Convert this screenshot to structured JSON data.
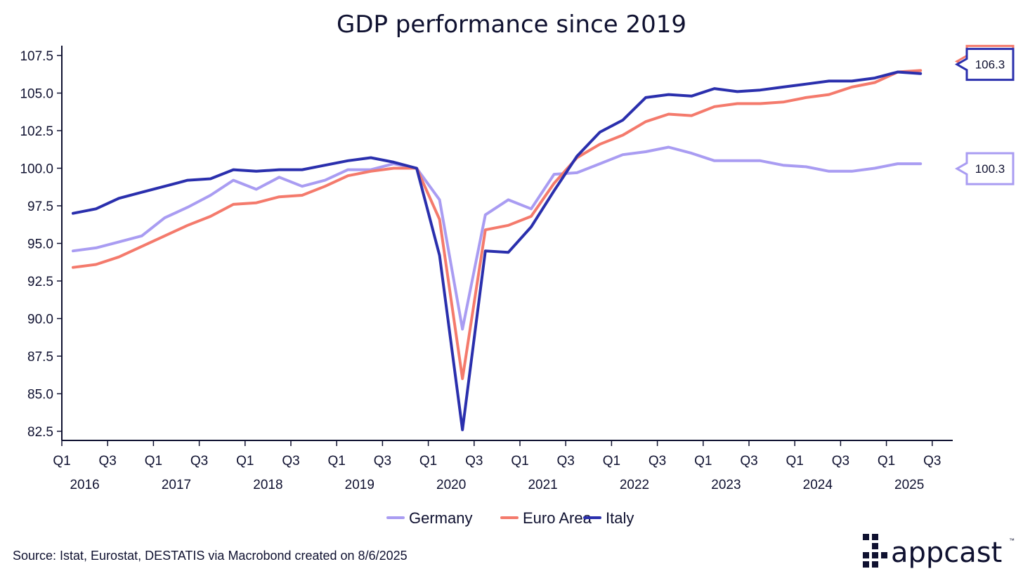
{
  "chart_data": {
    "type": "line",
    "title": "GDP performance since 2019",
    "xlabel": "",
    "ylabel": "",
    "ylim": [
      82.5,
      107.5
    ],
    "y_ticks": [
      "82.5",
      "85.0",
      "87.5",
      "90.0",
      "92.5",
      "95.0",
      "97.5",
      "100.0",
      "102.5",
      "105.0",
      "107.5"
    ],
    "x_quarter_ticks": [
      "Q1",
      "Q3",
      "Q1",
      "Q3",
      "Q1",
      "Q3",
      "Q1",
      "Q3",
      "Q1",
      "Q3",
      "Q1",
      "Q3",
      "Q1",
      "Q3",
      "Q1",
      "Q3",
      "Q1",
      "Q3",
      "Q1",
      "Q3"
    ],
    "x_year_labels": [
      "2016",
      "2017",
      "2018",
      "2019",
      "2020",
      "2021",
      "2022",
      "2023",
      "2024",
      "2025"
    ],
    "x": [
      "2016 Q1",
      "2016 Q2",
      "2016 Q3",
      "2016 Q4",
      "2017 Q1",
      "2017 Q2",
      "2017 Q3",
      "2017 Q4",
      "2018 Q1",
      "2018 Q2",
      "2018 Q3",
      "2018 Q4",
      "2019 Q1",
      "2019 Q2",
      "2019 Q3",
      "2019 Q4",
      "2020 Q1",
      "2020 Q2",
      "2020 Q3",
      "2020 Q4",
      "2021 Q1",
      "2021 Q2",
      "2021 Q3",
      "2021 Q4",
      "2022 Q1",
      "2022 Q2",
      "2022 Q3",
      "2022 Q4",
      "2023 Q1",
      "2023 Q2",
      "2023 Q3",
      "2023 Q4",
      "2024 Q1",
      "2024 Q2",
      "2024 Q3",
      "2024 Q4",
      "2025 Q1",
      "2025 Q2"
    ],
    "series": [
      {
        "name": "Germany",
        "color": "#a99cf2",
        "values": [
          94.5,
          94.7,
          95.1,
          95.5,
          96.7,
          97.4,
          98.2,
          99.2,
          98.6,
          99.4,
          98.8,
          99.2,
          99.9,
          99.9,
          100.3,
          100.0,
          97.9,
          89.3,
          96.9,
          97.9,
          97.3,
          99.6,
          99.7,
          100.3,
          100.9,
          101.1,
          101.4,
          101.0,
          100.5,
          100.5,
          100.5,
          100.2,
          100.1,
          99.8,
          99.8,
          100.0,
          100.3,
          100.3
        ]
      },
      {
        "name": "Euro Area",
        "color": "#f47a6c",
        "values": [
          93.4,
          93.6,
          94.1,
          94.8,
          95.5,
          96.2,
          96.8,
          97.6,
          97.7,
          98.1,
          98.2,
          98.8,
          99.5,
          99.8,
          100.0,
          100.0,
          96.6,
          86.0,
          95.9,
          96.2,
          96.8,
          99.0,
          100.7,
          101.6,
          102.2,
          103.1,
          103.6,
          103.5,
          104.1,
          104.3,
          104.3,
          104.4,
          104.7,
          104.9,
          105.4,
          105.7,
          106.4,
          106.5
        ]
      },
      {
        "name": "Italy",
        "color": "#2a2fad",
        "values": [
          97.0,
          97.3,
          98.0,
          98.4,
          98.8,
          99.2,
          99.3,
          99.9,
          99.8,
          99.9,
          99.9,
          100.2,
          100.5,
          100.7,
          100.4,
          100.0,
          94.2,
          82.6,
          94.5,
          94.4,
          96.1,
          98.5,
          100.8,
          102.4,
          103.2,
          104.7,
          104.9,
          104.8,
          105.3,
          105.1,
          105.2,
          105.4,
          105.6,
          105.8,
          105.8,
          106.0,
          106.4,
          106.3
        ]
      }
    ],
    "end_labels": [
      {
        "series": "Euro Area",
        "text": "106.5",
        "color": "#f47a6c"
      },
      {
        "series": "Italy",
        "text": "106.3",
        "color": "#2a2fad"
      },
      {
        "series": "Germany",
        "text": "100.3",
        "color": "#a99cf2"
      }
    ],
    "legend": {
      "position": "bottom-center",
      "items": [
        "Germany",
        "Euro Area",
        "Italy"
      ]
    },
    "grid": false
  },
  "source": "Source: Istat, Eurostat, DESTATIS via Macrobond created on 8/6/2025",
  "brand": {
    "name": "appcast",
    "mark": "™",
    "color": "#0f1130"
  }
}
